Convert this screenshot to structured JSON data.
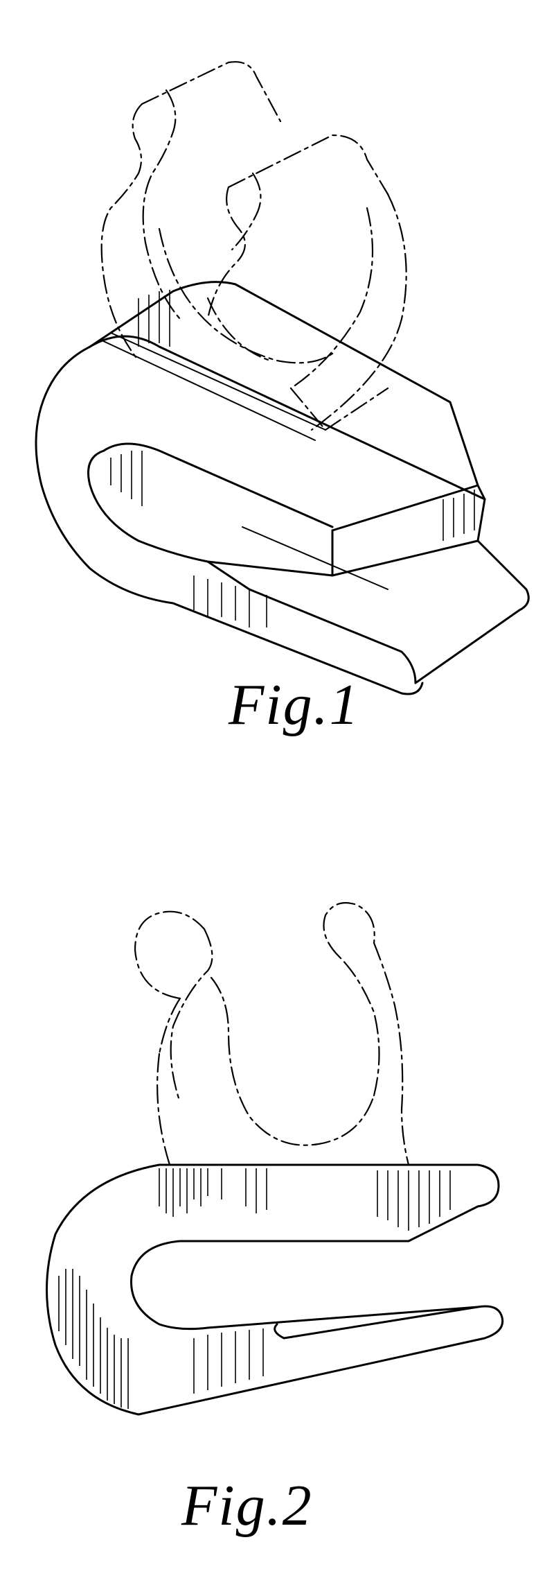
{
  "figures": [
    {
      "caption": "Fig.1"
    },
    {
      "caption": "Fig.2"
    }
  ]
}
